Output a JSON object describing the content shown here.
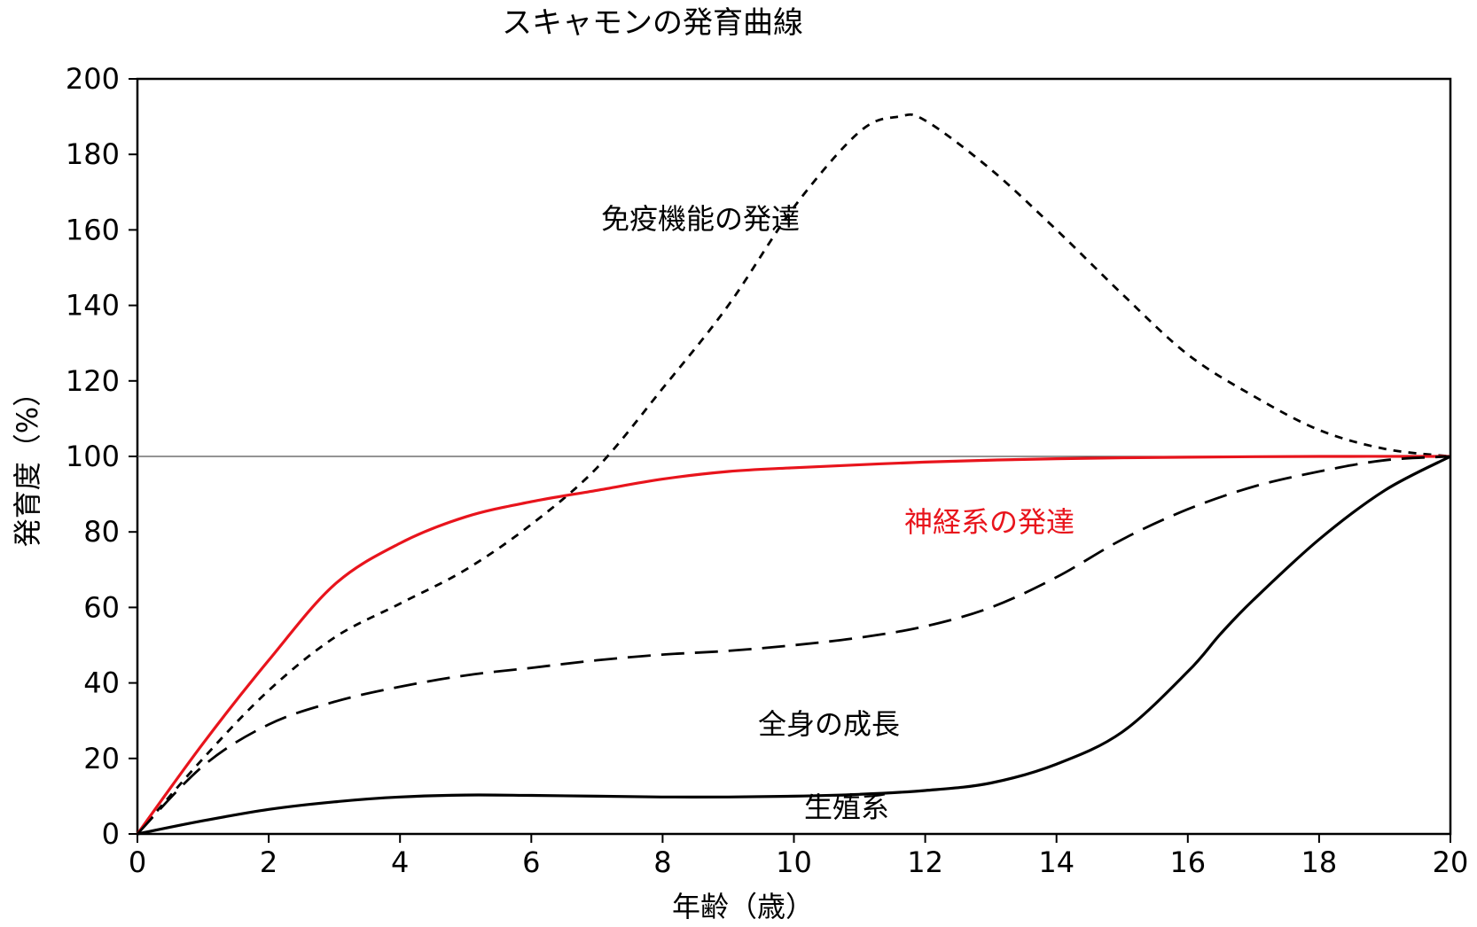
{
  "chart_data": {
    "type": "line",
    "title": "スキャモンの発育曲線",
    "xlabel": "年齢（歳）",
    "ylabel": "発育度（%）",
    "xlim": [
      0,
      20
    ],
    "ylim": [
      0,
      200
    ],
    "xticks": [
      0,
      2,
      4,
      6,
      8,
      10,
      12,
      14,
      16,
      18,
      20
    ],
    "yticks": [
      0,
      20,
      40,
      60,
      80,
      100,
      120,
      140,
      160,
      180,
      200
    ],
    "reference_line": 100,
    "grid": false,
    "series": [
      {
        "name": "免疫機能の発達",
        "color": "#000000",
        "style": "dotted-dash",
        "x": [
          0,
          1,
          2,
          3,
          4,
          5,
          6,
          7,
          8,
          9,
          10,
          11,
          11.6,
          12,
          13,
          14,
          15,
          16,
          17,
          18,
          19,
          20
        ],
        "y": [
          0,
          20,
          38,
          52,
          61,
          70,
          82,
          97,
          118,
          140,
          166,
          186,
          190,
          189,
          176,
          160,
          143,
          127,
          116,
          107,
          102,
          100
        ]
      },
      {
        "name": "神経系の発達",
        "color": "#e8141c",
        "style": "solid",
        "x": [
          0,
          1,
          2,
          3,
          4,
          5,
          6,
          7,
          8,
          9,
          10,
          12,
          14,
          16,
          18,
          20
        ],
        "y": [
          0,
          24,
          46,
          66,
          77,
          84,
          88,
          91,
          94,
          96,
          97,
          98.5,
          99.4,
          99.8,
          100,
          100
        ]
      },
      {
        "name": "全身の成長",
        "color": "#000000",
        "style": "dashed",
        "x": [
          0,
          1,
          2,
          3,
          4,
          5,
          6,
          7,
          8,
          9,
          10,
          11,
          12,
          13,
          14,
          15,
          16,
          17,
          18,
          19,
          20
        ],
        "y": [
          0,
          18,
          29,
          35,
          39,
          42,
          44,
          46,
          47.5,
          48.5,
          50,
          52,
          55,
          60,
          68,
          78,
          86,
          92,
          96,
          99,
          100
        ]
      },
      {
        "name": "生殖系",
        "color": "#000000",
        "style": "solid",
        "x": [
          0,
          1,
          2,
          3,
          4,
          5,
          6,
          7,
          8,
          9,
          10,
          11,
          12,
          13,
          14,
          15,
          16,
          16.5,
          17,
          18,
          19,
          20
        ],
        "y": [
          0,
          3.5,
          6.5,
          8.5,
          9.8,
          10.3,
          10.2,
          10,
          9.8,
          9.8,
          10,
          10.5,
          11.5,
          13.5,
          18.5,
          27,
          43,
          53,
          62,
          78,
          91,
          100
        ]
      }
    ],
    "annotations": [
      "免疫機能の発達",
      "神経系の発達",
      "全身の成長",
      "生殖系"
    ]
  }
}
